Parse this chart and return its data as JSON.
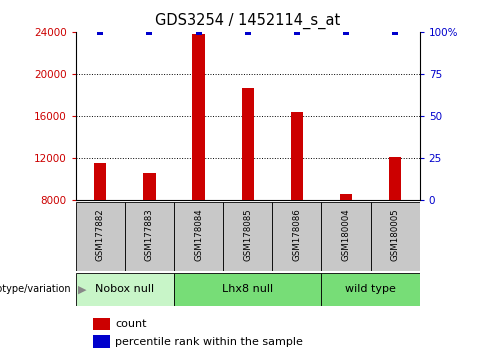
{
  "title": "GDS3254 / 1452114_s_at",
  "samples": [
    "GSM177882",
    "GSM177883",
    "GSM178084",
    "GSM178085",
    "GSM178086",
    "GSM180004",
    "GSM180005"
  ],
  "counts": [
    11500,
    10600,
    23800,
    18700,
    16400,
    8600,
    12100
  ],
  "percentile_ranks": [
    100,
    100,
    100,
    100,
    100,
    100,
    100
  ],
  "groups": [
    {
      "label": "Nobox null",
      "start": 0,
      "end": 2,
      "color": "#c8f5c8"
    },
    {
      "label": "Lhx8 null",
      "start": 2,
      "end": 5,
      "color": "#77dd77"
    },
    {
      "label": "wild type",
      "start": 5,
      "end": 7,
      "color": "#77dd77"
    }
  ],
  "ymin": 8000,
  "ymax": 24000,
  "yticks": [
    8000,
    12000,
    16000,
    20000,
    24000
  ],
  "y2ticks": [
    0,
    25,
    50,
    75,
    100
  ],
  "bar_color": "#CC0000",
  "percentile_color": "#0000CC",
  "bar_width": 0.25,
  "sample_box_color": "#C8C8C8",
  "ylabel_color": "#CC0000",
  "y2label_color": "#0000CC",
  "geno_label": "genotype/variation",
  "legend_items": [
    {
      "color": "#CC0000",
      "label": "count"
    },
    {
      "color": "#0000CC",
      "label": "percentile rank within the sample"
    }
  ]
}
